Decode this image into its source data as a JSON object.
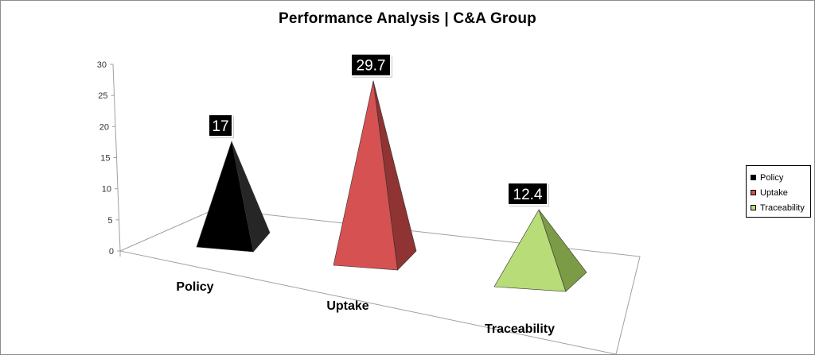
{
  "chart_data": {
    "type": "bar",
    "title": "Performance Analysis | C&A Group",
    "categories": [
      "Policy",
      "Uptake",
      "Traceability"
    ],
    "values": [
      17,
      29.7,
      12.4
    ],
    "data_labels": [
      "17",
      "29.7",
      "12.4"
    ],
    "colors": [
      "#000000",
      "#d65151",
      "#b8dc77"
    ],
    "side_colors": [
      "#262626",
      "#8f3333",
      "#7c9b47"
    ],
    "ylim": [
      0,
      30
    ],
    "y_ticks": [
      "0",
      "5",
      "10",
      "15",
      "20",
      "25",
      "30"
    ],
    "legend": {
      "position": "right",
      "items": [
        "Policy",
        "Uptake",
        "Traceability"
      ]
    },
    "grid": false,
    "style": "3d-pyramid"
  }
}
